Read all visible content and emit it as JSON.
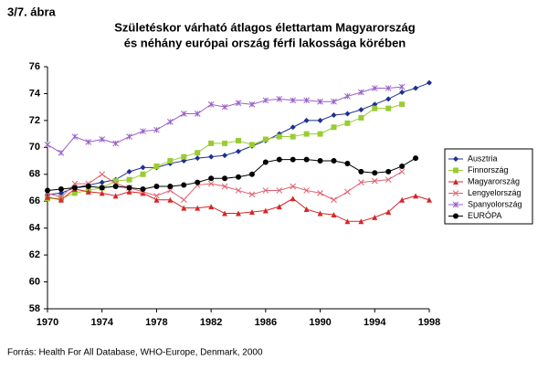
{
  "figure_label": "3/7. ábra",
  "source": "Forrás: Health For All Database, WHO-Europe, Denmark, 2000",
  "chart_data": {
    "type": "line",
    "title": [
      "Születéskor várható átlagos élettartam Magyarország",
      "és néhány európai ország férfi lakossága körében"
    ],
    "x": [
      1970,
      1971,
      1972,
      1973,
      1974,
      1975,
      1976,
      1977,
      1978,
      1979,
      1980,
      1981,
      1982,
      1983,
      1984,
      1985,
      1986,
      1987,
      1988,
      1989,
      1990,
      1991,
      1992,
      1993,
      1994,
      1995,
      1996,
      1997,
      1998
    ],
    "xlim": [
      1970,
      1998
    ],
    "xticks": [
      1970,
      1974,
      1978,
      1982,
      1986,
      1990,
      1994,
      1998
    ],
    "ylim": [
      58,
      76
    ],
    "yticks": [
      58,
      60,
      62,
      64,
      66,
      68,
      70,
      72,
      74,
      76
    ],
    "grid": false,
    "legend": "right",
    "series": [
      {
        "name": "Ausztria",
        "color": "#1f2f8f",
        "marker": "diamond",
        "values": [
          66.5,
          66.6,
          67.0,
          67.2,
          67.4,
          67.6,
          68.2,
          68.5,
          68.5,
          68.8,
          69.0,
          69.2,
          69.3,
          69.4,
          69.7,
          70.1,
          70.5,
          71.0,
          71.5,
          72.0,
          72.0,
          72.4,
          72.5,
          72.8,
          73.2,
          73.6,
          74.1,
          74.4,
          74.8
        ]
      },
      {
        "name": "Finnország",
        "color": "#99cc33",
        "marker": "square",
        "values": [
          66.2,
          66.2,
          66.6,
          66.8,
          67.0,
          67.5,
          67.6,
          68.0,
          68.6,
          69.0,
          69.3,
          69.6,
          70.3,
          70.3,
          70.5,
          70.2,
          70.6,
          70.8,
          70.8,
          71.0,
          71.0,
          71.5,
          71.8,
          72.2,
          72.9,
          72.9,
          73.2,
          null,
          null
        ]
      },
      {
        "name": "Magyarország",
        "color": "#d62728",
        "marker": "triangle",
        "values": [
          66.3,
          66.1,
          66.9,
          66.7,
          66.6,
          66.4,
          66.7,
          66.6,
          66.1,
          66.1,
          65.5,
          65.5,
          65.6,
          65.1,
          65.1,
          65.2,
          65.3,
          65.6,
          66.2,
          65.4,
          65.1,
          65.0,
          64.5,
          64.5,
          64.8,
          65.2,
          66.1,
          66.4,
          66.1
        ]
      },
      {
        "name": "Lengyelország",
        "color": "#e0606e",
        "marker": "x",
        "values": [
          66.6,
          66.3,
          67.3,
          67.3,
          68.0,
          67.3,
          67.0,
          66.7,
          66.4,
          66.8,
          66.1,
          67.2,
          67.3,
          67.1,
          66.8,
          66.5,
          66.8,
          66.8,
          67.1,
          66.8,
          66.6,
          66.1,
          66.7,
          67.4,
          67.5,
          67.6,
          68.2,
          null,
          null
        ]
      },
      {
        "name": "Spanyolország",
        "color": "#9a5fc8",
        "marker": "star",
        "values": [
          70.2,
          69.6,
          70.8,
          70.4,
          70.6,
          70.3,
          70.8,
          71.2,
          71.3,
          71.9,
          72.5,
          72.5,
          73.2,
          73.0,
          73.3,
          73.2,
          73.5,
          73.6,
          73.5,
          73.5,
          73.4,
          73.4,
          73.8,
          74.1,
          74.4,
          74.4,
          74.5,
          null,
          null
        ]
      },
      {
        "name": "EURÓPA",
        "color": "#000000",
        "marker": "circle",
        "values": [
          66.8,
          66.9,
          67.0,
          67.1,
          67.0,
          67.1,
          67.0,
          66.9,
          67.1,
          67.1,
          67.2,
          67.4,
          67.7,
          67.7,
          67.8,
          68.0,
          68.9,
          69.1,
          69.1,
          69.1,
          69.0,
          69.0,
          68.8,
          68.2,
          68.1,
          68.2,
          68.6,
          69.2,
          null
        ]
      }
    ]
  }
}
